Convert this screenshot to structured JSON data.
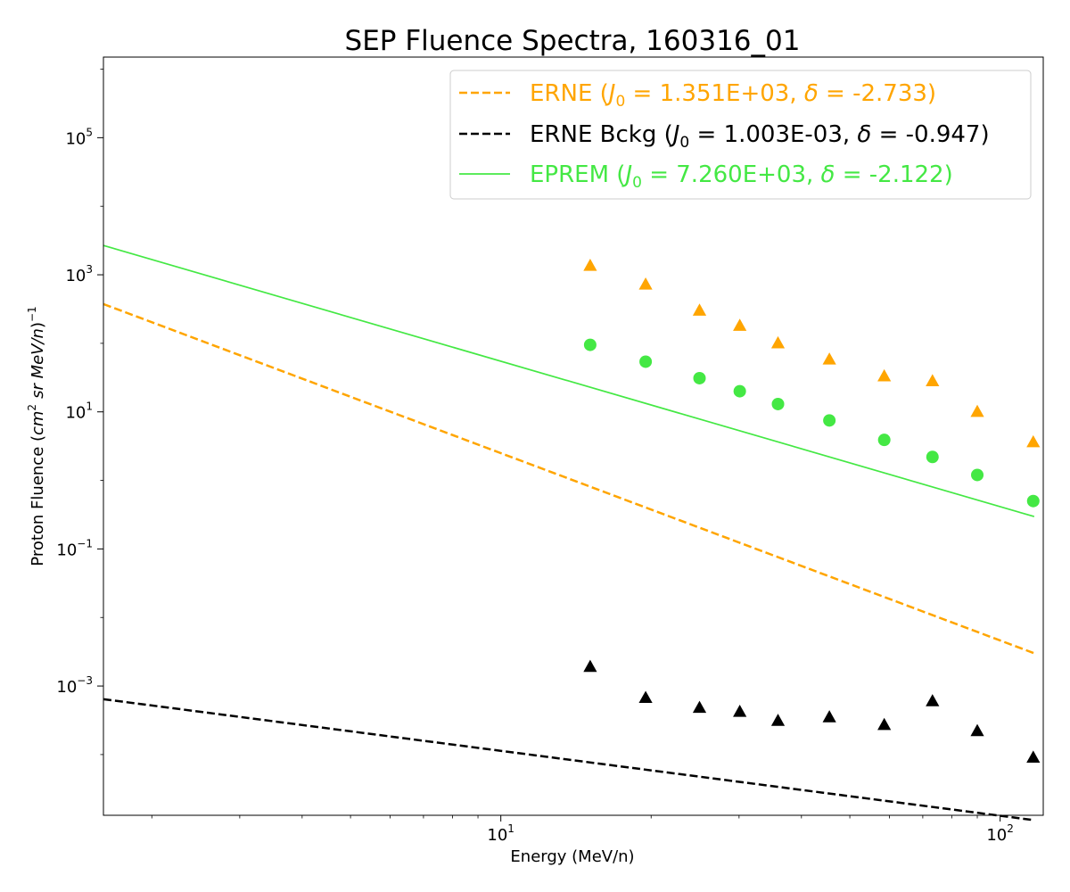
{
  "chart_data": {
    "type": "scatter",
    "title": "SEP Fluence Spectra, 160316_01",
    "xlabel": "Energy (MeV/n)",
    "ylabel": {
      "prefix": "Proton Fluence (",
      "cm": "cm",
      "cm_exp": "2",
      "mid": "sr MeV/n",
      "close": ")",
      "exp": "−1"
    },
    "xscale": "log",
    "yscale": "log",
    "xlim": [
      1.6,
      122
    ],
    "ylim": [
      1.3e-05,
      1500000
    ],
    "grid": false,
    "legend_placement": "upper right",
    "x_ticks": [
      {
        "value": 10,
        "base": "10",
        "exp": "1"
      },
      {
        "value": 100,
        "base": "10",
        "exp": "2"
      }
    ],
    "y_ticks": [
      {
        "value": 0.001,
        "base": "10",
        "exp": "−3"
      },
      {
        "value": 0.1,
        "base": "10",
        "exp": "−1"
      },
      {
        "value": 10,
        "base": "10",
        "exp": "1"
      },
      {
        "value": 1000,
        "base": "10",
        "exp": "3"
      },
      {
        "value": 100000,
        "base": "10",
        "exp": "5"
      }
    ],
    "x_minor_ticks": [
      2,
      3,
      4,
      5,
      6,
      7,
      8,
      9,
      20,
      30,
      40,
      50,
      60,
      70,
      80,
      90
    ],
    "fit_x_range": [
      1.6,
      117
    ],
    "series": [
      {
        "name": "ERNE",
        "legend_label": {
          "pre": "ERNE (",
          "j": "J",
          "sub": "0",
          "mid": " = 1.351E+03, ",
          "delta": "δ",
          "post": " = -2.733)"
        },
        "color": "#ffa500",
        "marker": "triangle",
        "fit_style": "dashed",
        "fit": {
          "J0": 1351,
          "delta": -2.733
        },
        "x": [
          15.1,
          19.5,
          25.0,
          30.1,
          35.9,
          45.5,
          58.6,
          73.2,
          90.0,
          116.5
        ],
        "y": [
          1350,
          720,
          300,
          180,
          100,
          58,
          33,
          28,
          10,
          3.6
        ]
      },
      {
        "name": "ERNE Bckg",
        "legend_label": {
          "pre": "ERNE Bckg (",
          "j": "J",
          "sub": "0",
          "mid": " = 1.003E-03, ",
          "delta": "δ",
          "post": " = -0.947)"
        },
        "color": "#000000",
        "marker": "triangle",
        "fit_style": "dashed",
        "fit": {
          "J0": 0.001003,
          "delta": -0.947
        },
        "x": [
          15.1,
          19.5,
          25.0,
          30.1,
          35.9,
          45.5,
          58.6,
          73.2,
          90.0,
          116.5
        ],
        "y": [
          0.0019,
          0.00067,
          0.00048,
          0.00042,
          0.00031,
          0.00035,
          0.00027,
          0.0006,
          0.00022,
          9e-05
        ]
      },
      {
        "name": "EPREM",
        "legend_label": {
          "pre": "EPREM (",
          "j": "J",
          "sub": "0",
          "mid": " = 7.260E+03, ",
          "delta": "δ",
          "post": " = -2.122)"
        },
        "color": "#44e844",
        "marker": "circle",
        "fit_style": "solid",
        "fit": {
          "J0": 7260,
          "delta": -2.122
        },
        "x": [
          15.1,
          19.5,
          25.0,
          30.1,
          35.9,
          45.5,
          58.6,
          73.2,
          90.0,
          116.5
        ],
        "y": [
          95,
          54,
          31,
          20,
          13,
          7.5,
          3.9,
          2.2,
          1.2,
          0.5
        ]
      }
    ]
  }
}
